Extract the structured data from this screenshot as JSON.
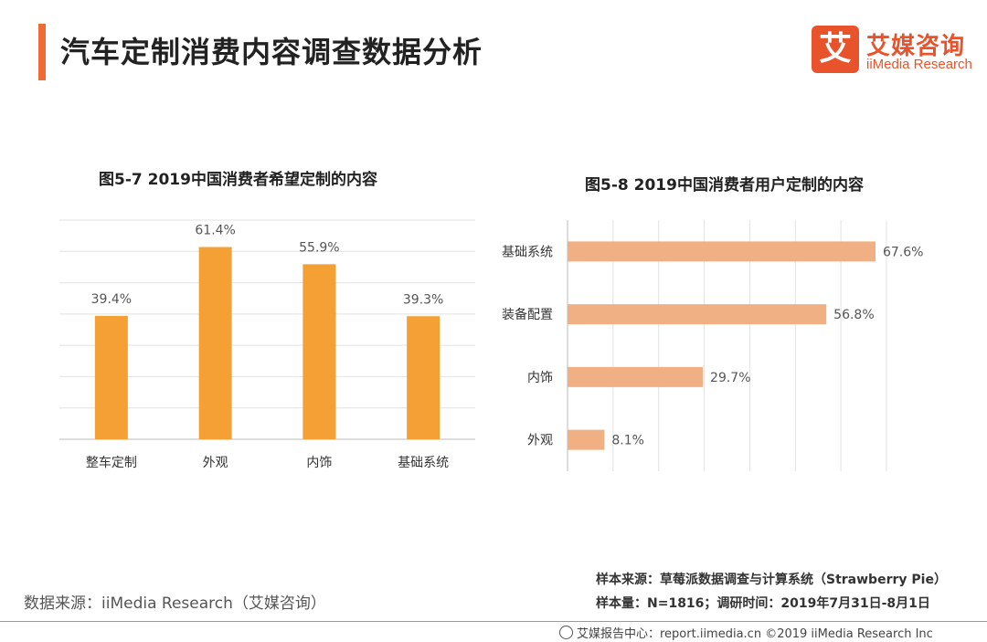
{
  "header": {
    "title": "汽车定制消费内容调查数据分析",
    "logo_mark": "艾",
    "logo_cn": "艾媒咨询",
    "logo_en": "iiMedia Research"
  },
  "chart_data": [
    {
      "type": "bar",
      "title": "图5-7 2019中国消费者希望定制的内容",
      "categories": [
        "整车定制",
        "外观",
        "内饰",
        "基础系统"
      ],
      "values": [
        39.4,
        61.4,
        55.9,
        39.3
      ],
      "labels": [
        "39.4%",
        "61.4%",
        "55.9%",
        "39.3%"
      ],
      "ylim": [
        0,
        70
      ],
      "color": "#f5a035",
      "grid": true
    },
    {
      "type": "bar",
      "orientation": "horizontal",
      "title": "图5-8 2019中国消费者用户定制的内容",
      "categories": [
        "基础系统",
        "装备配置",
        "内饰",
        "外观"
      ],
      "values": [
        67.6,
        56.8,
        29.7,
        8.1
      ],
      "labels": [
        "67.6%",
        "56.8%",
        "29.7%",
        "8.1%"
      ],
      "xlim": [
        0,
        70
      ],
      "color": "#f0b084",
      "grid": true
    }
  ],
  "footer": {
    "source": "数据来源：iiMedia Research（艾媒咨询）",
    "sample_source": "样本来源：草莓派数据调查与计算系统（Strawberry Pie）",
    "sample_size": "样本量：N=1816；调研时间：2019年7月31日-8月1日",
    "copyright": "艾媒报告中心：report.iimedia.cn  ©2019  iiMedia Research  Inc"
  }
}
